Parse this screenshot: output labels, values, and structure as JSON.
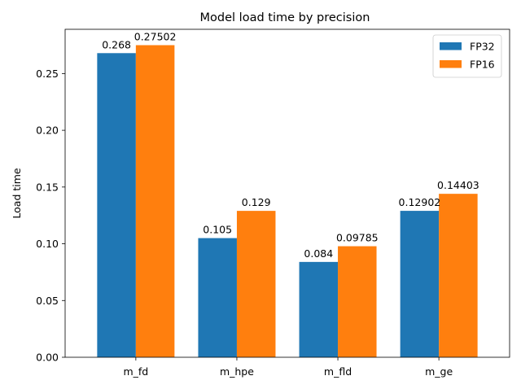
{
  "chart_data": {
    "type": "bar",
    "title": "Model load time by precision",
    "xlabel": "",
    "ylabel": "Load time",
    "categories": [
      "m_fd",
      "m_hpe",
      "m_fld",
      "m_ge"
    ],
    "series": [
      {
        "name": "FP32",
        "color": "#1f77b4",
        "values": [
          0.268,
          0.105,
          0.084,
          0.12902
        ],
        "labels": [
          "0.268",
          "0.105",
          "0.084",
          "0.12902"
        ]
      },
      {
        "name": "FP16",
        "color": "#ff7f0e",
        "values": [
          0.27502,
          0.129,
          0.09785,
          0.14403
        ],
        "labels": [
          "0.27502",
          "0.129",
          "0.09785",
          "0.14403"
        ]
      }
    ],
    "ylim": [
      0,
      0.289
    ],
    "yticks": [
      0.0,
      0.05,
      0.1,
      0.15,
      0.2,
      0.25
    ],
    "ytick_labels": [
      "0.00",
      "0.05",
      "0.10",
      "0.15",
      "0.20",
      "0.25"
    ],
    "grid": false,
    "legend_position": "top-right"
  }
}
